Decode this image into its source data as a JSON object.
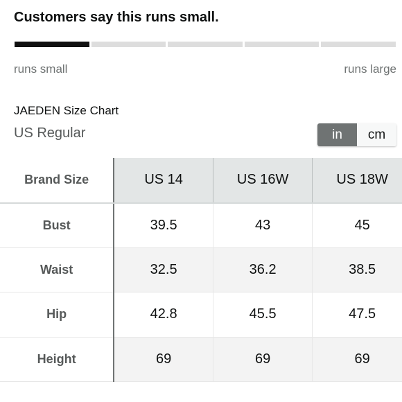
{
  "fit_feedback": {
    "title": "Customers say this runs small.",
    "scale_segments": 5,
    "active_segment": 1,
    "left_label": "runs small",
    "right_label": "runs large"
  },
  "size_chart": {
    "title": "JAEDEN Size Chart",
    "subtitle": "US Regular",
    "units": {
      "in_label": "in",
      "cm_label": "cm",
      "selected": "in"
    },
    "corner_label": "Brand Size",
    "columns": [
      "US 14",
      "US 16W",
      "US 18W"
    ],
    "rows": [
      {
        "label": "Bust",
        "values": [
          "39.5",
          "43",
          "45"
        ]
      },
      {
        "label": "Waist",
        "values": [
          "32.5",
          "36.2",
          "38.5"
        ]
      },
      {
        "label": "Hip",
        "values": [
          "42.8",
          "45.5",
          "47.5"
        ]
      },
      {
        "label": "Height",
        "values": [
          "69",
          "69",
          "69"
        ]
      }
    ]
  },
  "colors": {
    "active_segment": "#111111",
    "inactive_segment": "#dddddd",
    "toggle_selected": "#6f7373",
    "header_bg": "#e3e6e6"
  }
}
